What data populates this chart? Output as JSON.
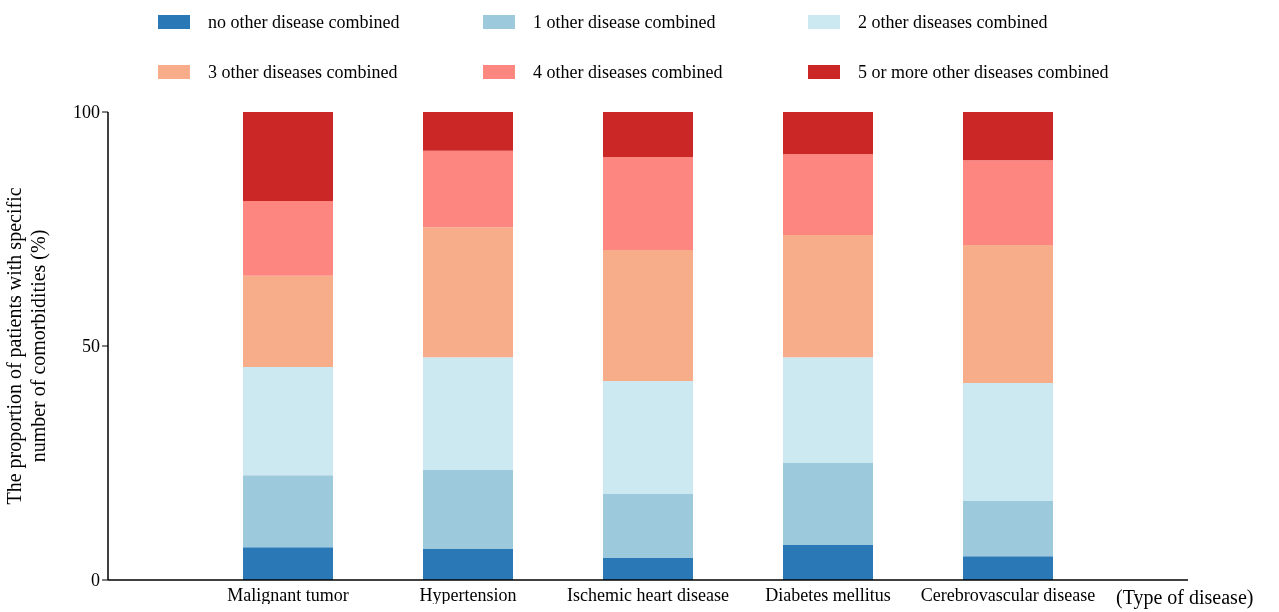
{
  "chart_data": {
    "type": "bar",
    "stacked": true,
    "categories": [
      "Malignant tumor",
      "Hypertension",
      "Ischemic heart disease",
      "Diabetes mellitus",
      "Cerebrovascular disease"
    ],
    "series": [
      {
        "name": "no other disease combined",
        "color": "#2a78b5",
        "values": [
          7.0,
          6.6,
          4.7,
          7.5,
          5.1
        ]
      },
      {
        "name": "1 other disease combined",
        "color": "#9dc9dc",
        "values": [
          15.4,
          16.9,
          13.7,
          17.5,
          11.8
        ]
      },
      {
        "name": "2 other diseases combined",
        "color": "#cce8f0",
        "values": [
          23.1,
          24.1,
          24.1,
          22.6,
          25.2
        ]
      },
      {
        "name": "3 other diseases combined",
        "color": "#f7ad8a",
        "values": [
          19.5,
          27.8,
          28.0,
          26.1,
          29.5
        ]
      },
      {
        "name": "4 other diseases combined",
        "color": "#fe8680",
        "values": [
          16.0,
          16.3,
          19.9,
          17.3,
          18.1
        ]
      },
      {
        "name": "5 or more other diseases combined",
        "color": "#cb2727",
        "values": [
          19.0,
          8.3,
          9.6,
          9.0,
          10.3
        ]
      }
    ],
    "ylim": [
      0,
      100
    ],
    "yticks": [
      0,
      50,
      100
    ],
    "ylabel": "The proportion of patients with specific number of comorbidities (%)",
    "xlabel": "(Type of disease)",
    "legend": "top"
  }
}
